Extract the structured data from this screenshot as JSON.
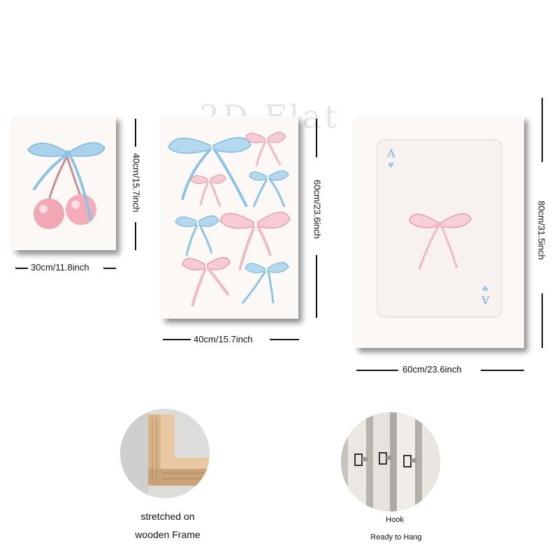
{
  "watermark": "2D Flat",
  "panels": [
    {
      "id": "small",
      "width_label": "30cm/11.8inch",
      "height_label": "40cm/15.7inch",
      "motif": "cherries-with-blue-bow"
    },
    {
      "id": "medium",
      "width_label": "40cm/15.7inch",
      "height_label": "60cm/23.6inch",
      "motif": "pink-and-blue-bows"
    },
    {
      "id": "large",
      "width_label": "60cm/23.6inch",
      "height_label": "80cm/31.5inch",
      "motif": "ace-of-hearts-card-with-pink-bow"
    }
  ],
  "card": {
    "rank": "A",
    "suit": "heart"
  },
  "features": [
    {
      "lines": [
        "stretched on",
        "wooden Frame"
      ],
      "icon": "wooden-frame-corner"
    },
    {
      "lines": [
        "Hook",
        "Ready to Hang"
      ],
      "icon": "hanging-hooks"
    }
  ],
  "colors": {
    "blue_ribbon": "#8cc4e3",
    "pink_ribbon": "#f0b8c8",
    "cherry": "#f2a8b4",
    "card_heart": "#9cc7ea"
  }
}
